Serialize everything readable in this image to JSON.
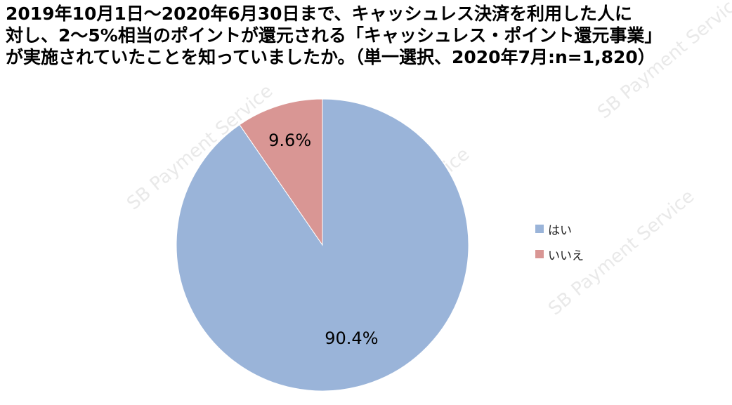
{
  "title_lines": [
    "2019年10月1日～2020年6月30日まで、キャッシュレス決済を利用した人に",
    "対し、2～5%相当のポイントが還元される「キャッシュレス・ポイント還元事業」",
    "が実施されていたことを知っていましたか。（単一選択、2020年7月:n=1,820）"
  ],
  "watermark_text": "SB Payment Service",
  "chart_data": {
    "type": "pie",
    "title": "2019年10月1日～2020年6月30日まで、キャッシュレス決済を利用した人に対し、2～5%相当のポイントが還元される「キャッシュレス・ポイント還元事業」が実施されていたことを知っていましたか。（単一選択、2020年7月:n=1,820）",
    "slices": [
      {
        "label": "はい",
        "value": 90.4,
        "display": "90.4%",
        "color": "#9ab4d9"
      },
      {
        "label": "いいえ",
        "value": 9.6,
        "display": "9.6%",
        "color": "#d99694"
      }
    ],
    "start_angle": "12 o'clock",
    "direction": "clockwise",
    "legend_position": "right"
  }
}
